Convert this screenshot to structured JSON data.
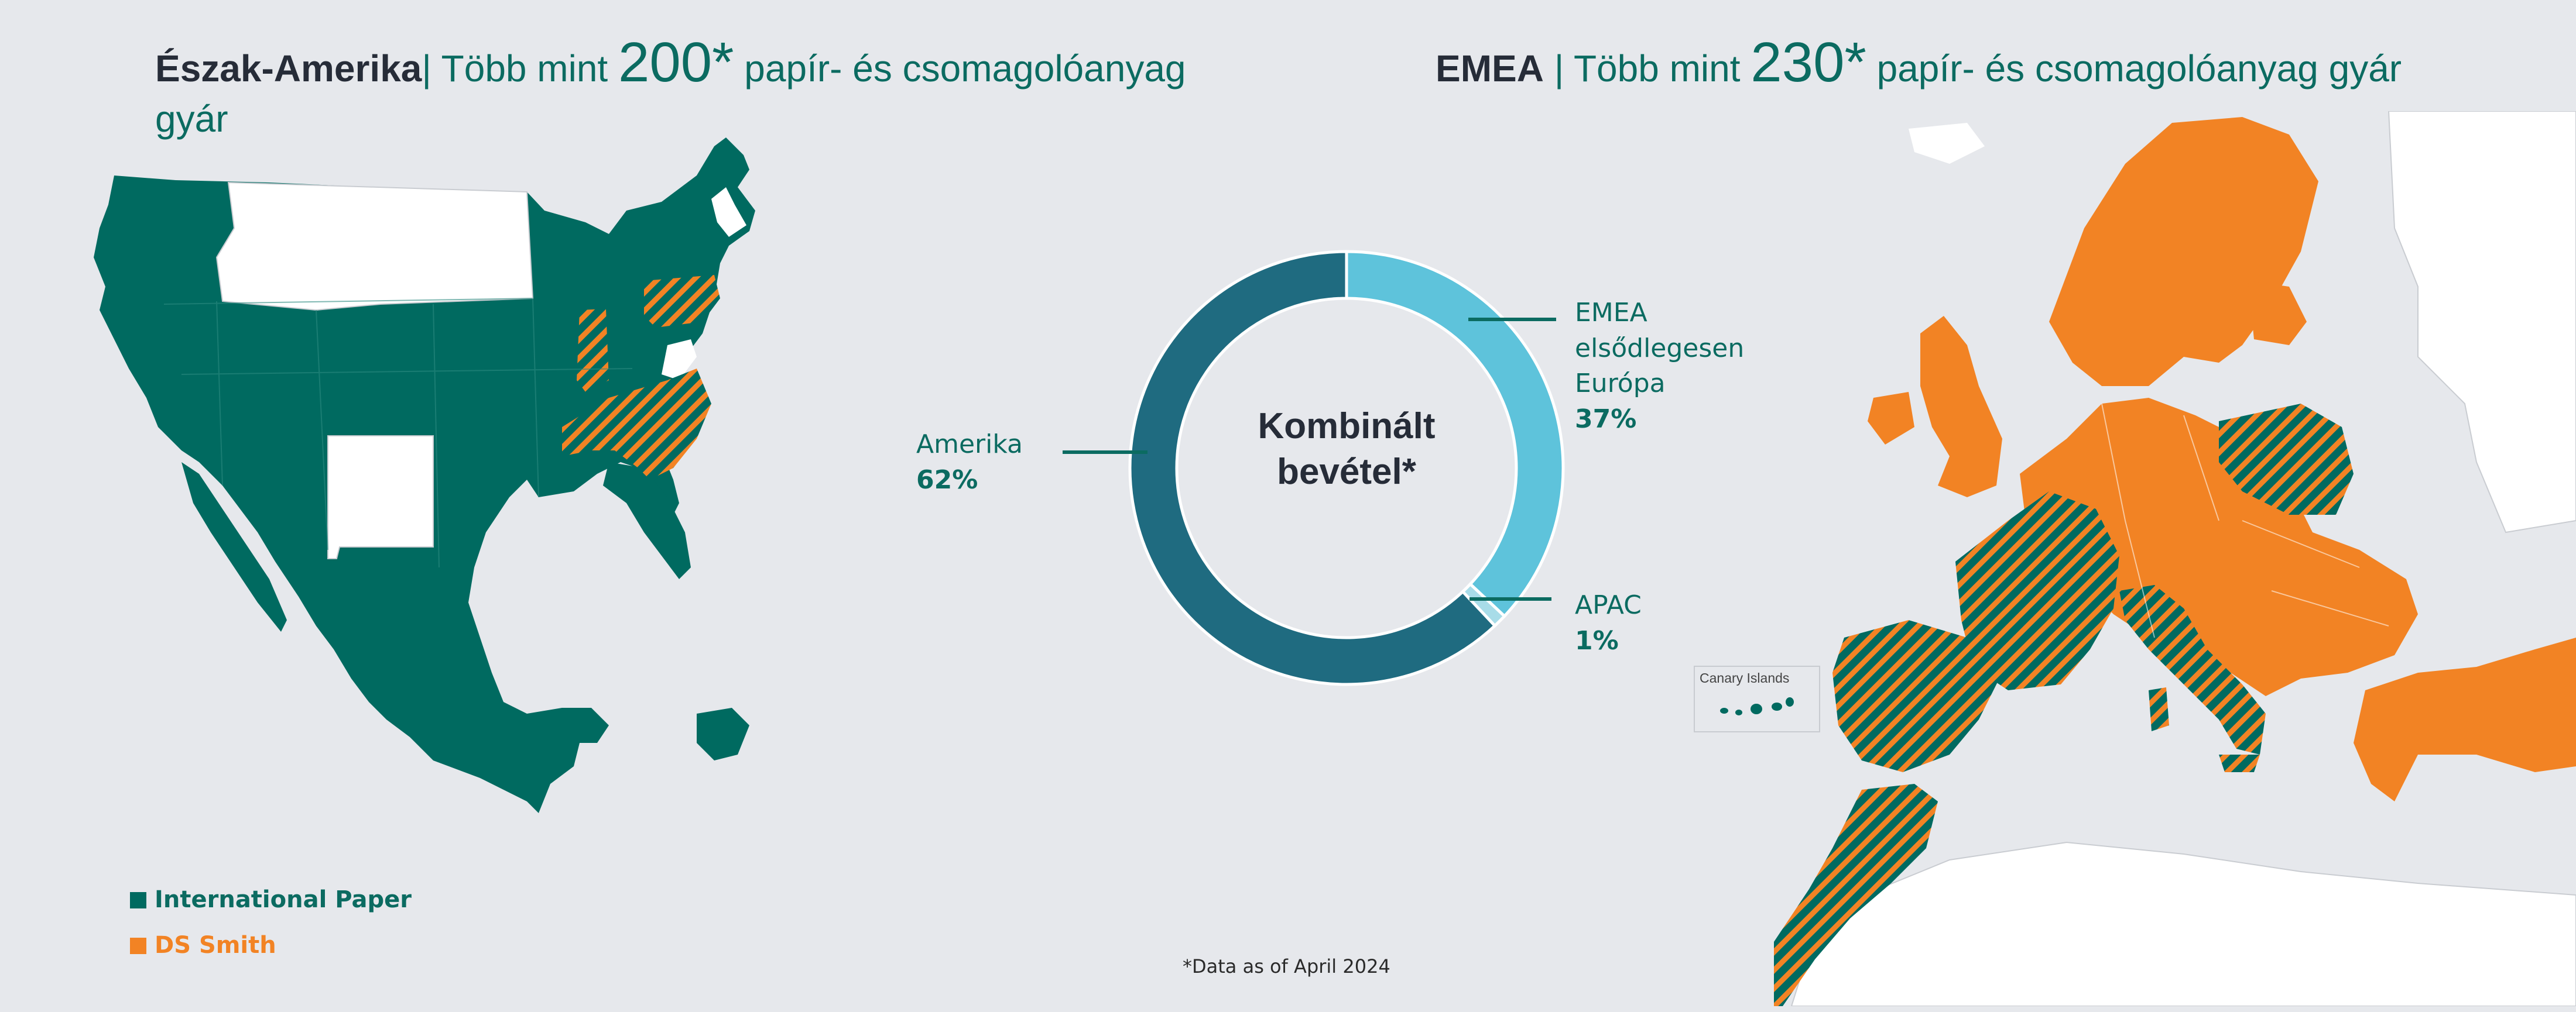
{
  "headers": {
    "na": {
      "region": "Észak-Amerika",
      "pre": "| Több mint ",
      "num": "200*",
      "post": " papír- és csomagolóanyag",
      "post2": "gyár"
    },
    "emea": {
      "region": "EMEA",
      "pre": " | Több mint ",
      "num": "230*",
      "post": " papír- és csomagolóanyag gyár"
    }
  },
  "donut_center": {
    "line1": "Kombinált",
    "line2": "bevétel*"
  },
  "labels": {
    "amerika": {
      "name": "Amerika",
      "pct": "62%"
    },
    "emea": {
      "line1": "EMEA",
      "line2": "elsődlegesen",
      "line3": "Európa",
      "pct": "37%"
    },
    "apac": {
      "name": "APAC",
      "pct": "1%"
    }
  },
  "legend": {
    "ip": "International Paper",
    "ds": "DS Smith"
  },
  "footnote": "*Data as of April 2024",
  "canary_label": "Canary Islands",
  "colors": {
    "ip_green": "#006a60",
    "ds_orange": "#f28324",
    "background": "#e6e8ec",
    "amerika": "#1f6b80",
    "emea": "#5ec3db",
    "apac": "#a8dce8"
  },
  "chart_data": {
    "type": "pie",
    "title": "Kombinált bevétel*",
    "categories": [
      "Amerika",
      "EMEA elsődlegesen Európa",
      "APAC"
    ],
    "values": [
      62,
      37,
      1
    ],
    "unit": "%",
    "style": "donut"
  }
}
